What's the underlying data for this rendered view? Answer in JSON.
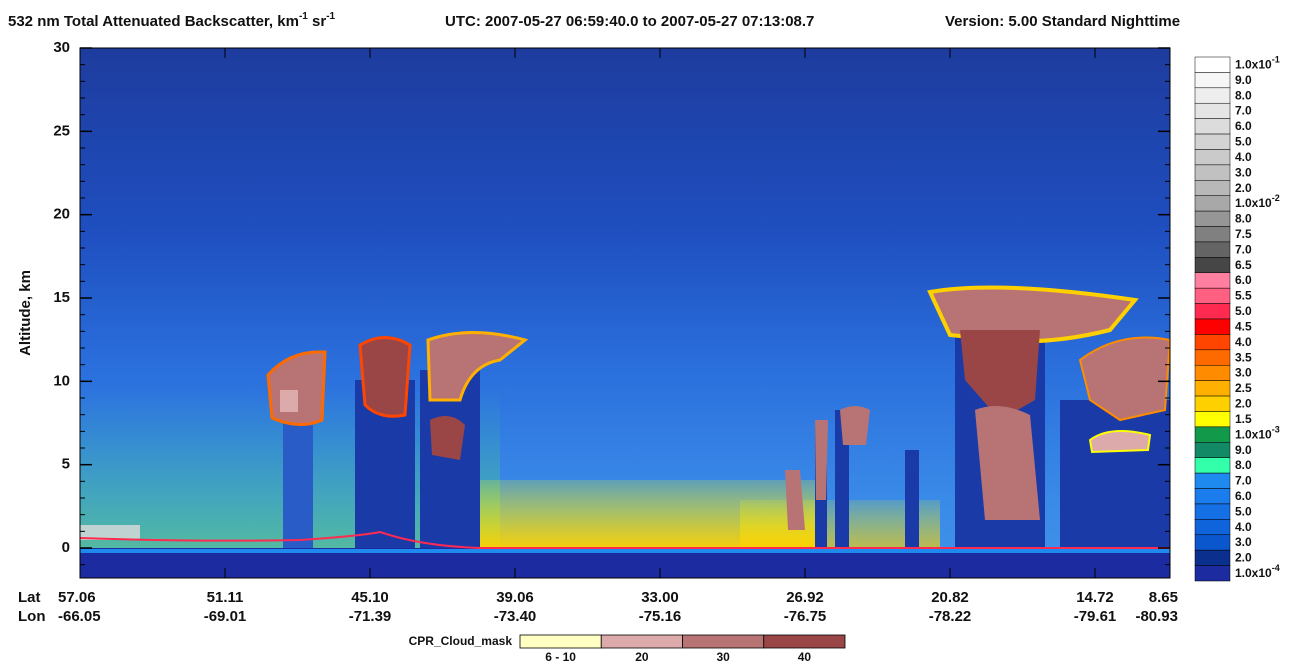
{
  "chart_data": {
    "type": "heatmap",
    "title": [
      {
        "text": "532 nm Total Attenuated Backscatter, km"
      },
      {
        "sup": "-1"
      },
      {
        "text": " sr"
      },
      {
        "sup": "-1"
      }
    ],
    "utc": "UTC:  2007-05-27 06:59:40.0  to  2007-05-27 07:13:08.7",
    "version": "Version: 5.00  Standard  Nighttime",
    "ylabel": "Altitude, km",
    "ylim": [
      -1.8,
      30
    ],
    "yticks": [
      0,
      5,
      10,
      15,
      20,
      25,
      30
    ],
    "x_row_names": [
      "Lat",
      "Lon"
    ],
    "x_labels": [
      {
        "lat": "57.06",
        "lon": "-66.05"
      },
      {
        "lat": "51.11",
        "lon": "-69.01"
      },
      {
        "lat": "45.10",
        "lon": "-71.39"
      },
      {
        "lat": "39.06",
        "lon": "-73.40"
      },
      {
        "lat": "33.00",
        "lon": "-75.16"
      },
      {
        "lat": "26.92",
        "lon": "-76.75"
      },
      {
        "lat": "20.82",
        "lon": "-78.22"
      },
      {
        "lat": "14.72",
        "lon": "-79.61"
      },
      {
        "lat": "8.65",
        "lon": "-80.93"
      }
    ],
    "colorbar": [
      {
        "label": "1.0x10",
        "sup": "-1",
        "color": "#ffffff"
      },
      {
        "label": "9.0",
        "color": "#f6f6f6"
      },
      {
        "label": "8.0",
        "color": "#eeeeee"
      },
      {
        "label": "7.0",
        "color": "#e5e5e5"
      },
      {
        "label": "6.0",
        "color": "#dcdcdc"
      },
      {
        "label": "5.0",
        "color": "#d3d3d3"
      },
      {
        "label": "4.0",
        "color": "#cacaca"
      },
      {
        "label": "3.0",
        "color": "#c1c1c1"
      },
      {
        "label": "2.0",
        "color": "#b8b8b8"
      },
      {
        "label": "1.0x10",
        "sup": "-2",
        "color": "#a8a8a8"
      },
      {
        "label": "8.0",
        "color": "#969696"
      },
      {
        "label": "7.5",
        "color": "#808080"
      },
      {
        "label": "7.0",
        "color": "#646464"
      },
      {
        "label": "6.5",
        "color": "#464646"
      },
      {
        "label": "6.0",
        "color": "#ff7fa0"
      },
      {
        "label": "5.5",
        "color": "#ff5f80"
      },
      {
        "label": "5.0",
        "color": "#ff2a50"
      },
      {
        "label": "4.5",
        "color": "#ff0000"
      },
      {
        "label": "4.0",
        "color": "#ff4500"
      },
      {
        "label": "3.5",
        "color": "#ff6a00"
      },
      {
        "label": "3.0",
        "color": "#ff8c00"
      },
      {
        "label": "2.5",
        "color": "#ffb000"
      },
      {
        "label": "2.0",
        "color": "#ffd000"
      },
      {
        "label": "1.5",
        "color": "#ffff00"
      },
      {
        "label": "1.0x10",
        "sup": "-3",
        "color": "#12994a"
      },
      {
        "label": "9.0",
        "color": "#128a66"
      },
      {
        "label": "8.0",
        "color": "#33ffaa"
      },
      {
        "label": "7.0",
        "color": "#1e8af0"
      },
      {
        "label": "6.0",
        "color": "#1a7ced"
      },
      {
        "label": "5.0",
        "color": "#1570e6"
      },
      {
        "label": "4.0",
        "color": "#0f64dc"
      },
      {
        "label": "3.0",
        "color": "#0a56cc"
      },
      {
        "label": "2.0",
        "color": "#0a2f8c"
      },
      {
        "label": "1.0x10",
        "sup": "-4",
        "color": "#1c2ca0"
      }
    ],
    "cloud_mask": {
      "title": "CPR_Cloud_mask",
      "items": [
        {
          "label": "6 - 10",
          "color": "#ffffc4"
        },
        {
          "label": "20",
          "color": "#dcaaaa"
        },
        {
          "label": "30",
          "color": "#b87474"
        },
        {
          "label": "40",
          "color": "#9a4646"
        }
      ]
    }
  }
}
